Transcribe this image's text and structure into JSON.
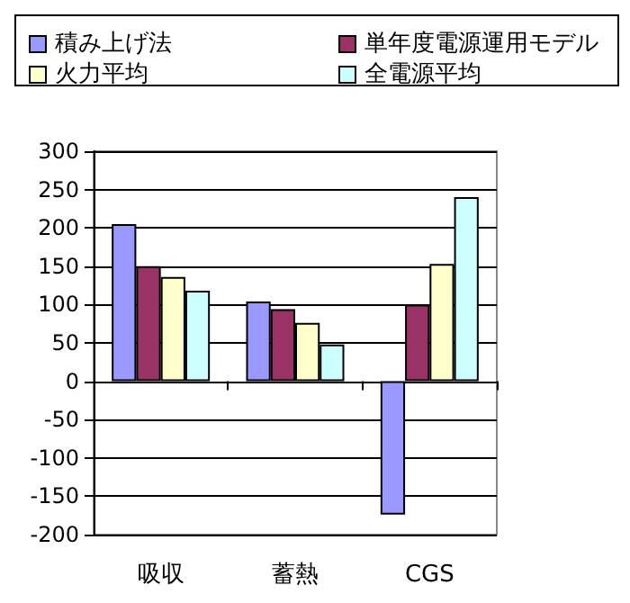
{
  "chart_data": {
    "type": "bar",
    "categories": [
      "吸収",
      "蓄熱",
      "CGS"
    ],
    "series": [
      {
        "name": "積み上げ法",
        "color": "#9999ff",
        "values": [
          205,
          104,
          -174
        ]
      },
      {
        "name": "単年度電源運用モデル",
        "color": "#993366",
        "values": [
          150,
          94,
          100
        ]
      },
      {
        "name": "火力平均",
        "color": "#ffffcc",
        "values": [
          136,
          76,
          153
        ]
      },
      {
        "name": "全電源平均",
        "color": "#ccffff",
        "values": [
          118,
          48,
          240
        ]
      }
    ],
    "ylim": [
      -200,
      300
    ],
    "yticks": [
      -200,
      -150,
      -100,
      -50,
      0,
      50,
      100,
      150,
      200,
      250,
      300
    ],
    "grid": "y",
    "legend": "top"
  }
}
